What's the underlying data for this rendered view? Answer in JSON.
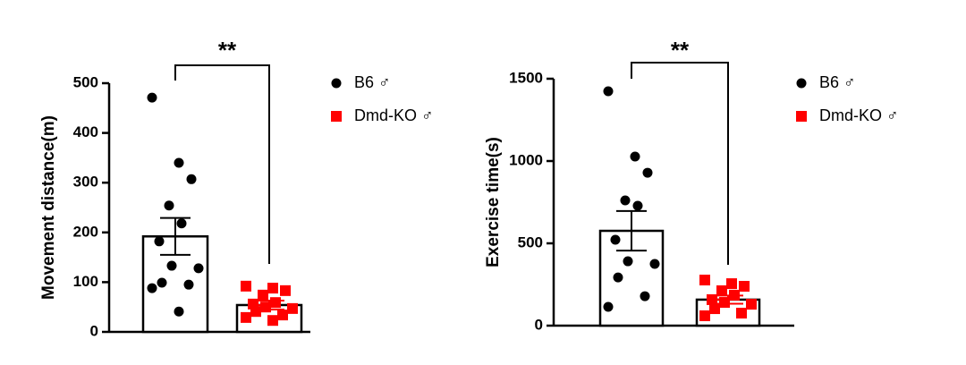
{
  "chart_data": [
    {
      "type": "bar",
      "ylabel": "Movement distance(m)",
      "annotation": "**",
      "ylim": [
        0,
        500
      ],
      "yticks": [
        0,
        100,
        200,
        300,
        400,
        500
      ],
      "series": [
        {
          "name": "B6 ♂",
          "color": "#000000",
          "marker": "circle",
          "mean": 192,
          "error": 37,
          "values": [
            471,
            340,
            307,
            254,
            218,
            182,
            133,
            128,
            99,
            95,
            88,
            41
          ]
        },
        {
          "name": "Dmd-KO ♂",
          "color": "#ff0000",
          "marker": "square",
          "mean": 54,
          "error": 9,
          "values": [
            92,
            88,
            83,
            74,
            59,
            56,
            50,
            47,
            41,
            34,
            29,
            23
          ]
        }
      ]
    },
    {
      "type": "bar",
      "ylabel": "Exercise time(s)",
      "annotation": "**",
      "ylim": [
        0,
        1500
      ],
      "yticks": [
        0,
        500,
        1000,
        1500
      ],
      "series": [
        {
          "name": "B6 ♂",
          "color": "#000000",
          "marker": "circle",
          "mean": 576,
          "error": 120,
          "values": [
            1424,
            1027,
            929,
            761,
            728,
            522,
            391,
            375,
            293,
            179,
            114
          ]
        },
        {
          "name": "Dmd-KO ♂",
          "color": "#ff0000",
          "marker": "square",
          "mean": 158,
          "error": 25,
          "values": [
            277,
            255,
            239,
            212,
            185,
            158,
            141,
            130,
            103,
            76,
            60
          ]
        }
      ]
    }
  ]
}
